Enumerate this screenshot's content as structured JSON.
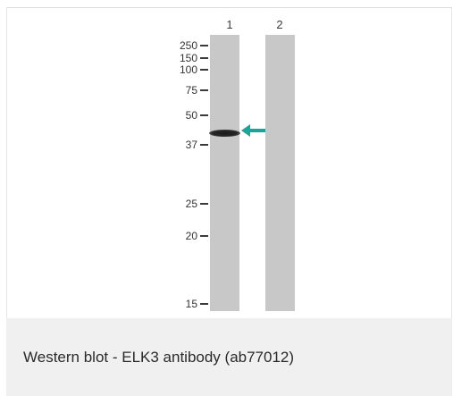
{
  "image": {
    "lanes": [
      {
        "label": "1"
      },
      {
        "label": "2"
      }
    ],
    "markers": [
      "250",
      "150",
      "100",
      "75",
      "50",
      "37",
      "25",
      "20",
      "15"
    ],
    "arrow_color": "#1aa59a",
    "lane_color": "#c8c8c8"
  },
  "caption": "Western blot - ELK3 antibody (ab77012)"
}
